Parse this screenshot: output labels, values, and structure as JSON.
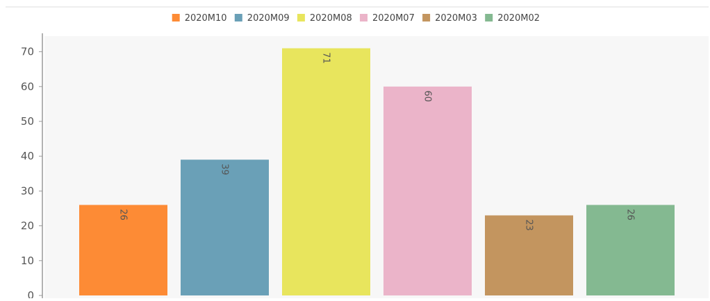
{
  "chart_data": {
    "type": "bar",
    "title": "",
    "xlabel": "",
    "ylabel": "",
    "ylim": [
      0,
      70
    ],
    "yticks": [
      0,
      10,
      20,
      30,
      40,
      50,
      60,
      70
    ],
    "grid": false,
    "legend_position": "top-center",
    "bars": [
      {
        "name": "2020M10",
        "value": 26,
        "label": "26",
        "color": "#fd8b35"
      },
      {
        "name": "2020M09",
        "value": 39,
        "label": "39",
        "color": "#6aa0b7"
      },
      {
        "name": "2020M08",
        "value": 71,
        "label": "71",
        "color": "#e8e55d"
      },
      {
        "name": "2020M07",
        "value": 60,
        "label": "60",
        "color": "#ebb4c9"
      },
      {
        "name": "2020M03",
        "value": 23,
        "label": "23",
        "color": "#c3955f"
      },
      {
        "name": "2020M02",
        "value": 26,
        "label": "26",
        "color": "#84b991"
      }
    ]
  },
  "colors": {
    "plot_background": "#f7f7f7",
    "axis": "#999999",
    "frame_line": "#dcdcdc"
  }
}
